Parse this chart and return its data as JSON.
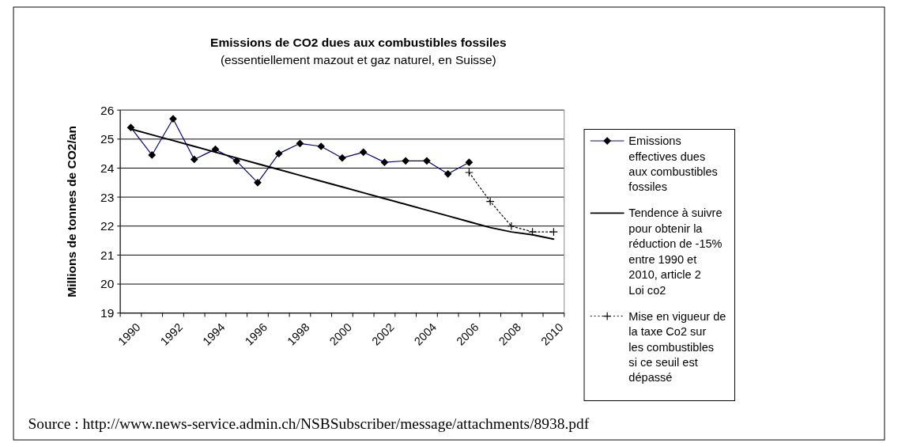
{
  "chart_data": {
    "type": "line",
    "title": "Emissions de CO2 dues aux combustibles fossiles",
    "subtitle": "(essentiellement mazout et gaz naturel, en Suisse)",
    "ylabel": "Millions de tonnes de CO2/an",
    "categories": [
      "1990",
      null,
      "1992",
      null,
      "1994",
      null,
      "1996",
      null,
      "1998",
      null,
      "2000",
      null,
      "2002",
      null,
      "2004",
      null,
      "2006",
      null,
      "2008",
      null,
      "2010"
    ],
    "series": [
      {
        "name": "Emissions effectives dues aux combustibles fossiles",
        "color": "#000080",
        "marker": "diamond",
        "line_style": "solid",
        "values": [
          25.4,
          24.45,
          25.7,
          24.3,
          24.65,
          24.25,
          23.5,
          24.5,
          24.85,
          24.75,
          24.35,
          24.55,
          24.2,
          24.25,
          24.25,
          23.8,
          24.2,
          null,
          null,
          null,
          null
        ]
      },
      {
        "name": "Tendence à suivre pour obtenir la réduction de -15% entre 1990 et 2010, article 2 Loi co2",
        "color": "#000000",
        "marker": "none",
        "line_style": "solid",
        "values": [
          25.35,
          25.15,
          24.95,
          24.75,
          24.55,
          24.35,
          24.15,
          23.95,
          23.75,
          23.55,
          23.35,
          23.15,
          22.95,
          22.75,
          22.55,
          22.35,
          22.15,
          21.95,
          21.8,
          21.7,
          21.55
        ]
      },
      {
        "name": "Mise en vigueur de la taxe Co2 sur les combustibles si ce seuil est dépassé",
        "color": "#000000",
        "marker": "cross",
        "line_style": "dotted",
        "values": [
          null,
          null,
          null,
          null,
          null,
          null,
          null,
          null,
          null,
          null,
          null,
          null,
          null,
          null,
          null,
          null,
          23.85,
          22.85,
          22.0,
          21.8,
          21.8
        ]
      }
    ],
    "ylim": [
      19,
      26
    ],
    "yticks": [
      19,
      20,
      21,
      22,
      23,
      24,
      25,
      26
    ],
    "grid": "y",
    "legend": "right",
    "annotations": [
      "Source : http://www.news-service.admin.ch/NSBSubscriber/message/attachments/8938.pdf"
    ]
  }
}
